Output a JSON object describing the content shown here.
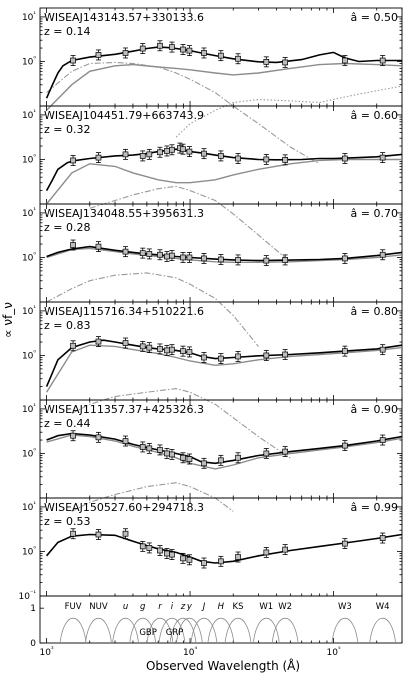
{
  "chart_data": {
    "type": "line",
    "xlabel": "Observed Wavelength (Å)",
    "ylabel": "∝ νf_ν",
    "x_scale": "log",
    "xlim": [
      900,
      300000
    ],
    "x_ticks": [
      {
        "value": 1000,
        "label": "10³"
      },
      {
        "value": 10000,
        "label": "10⁴"
      },
      {
        "value": 100000,
        "label": "10⁵"
      }
    ],
    "y_scale": "log",
    "y_ticks": [
      {
        "value": 0.1,
        "label": "10⁻¹"
      },
      {
        "value": 1,
        "label": "10⁰"
      },
      {
        "value": 10,
        "label": "10¹"
      }
    ],
    "panels": [
      {
        "name": "WISEAJ143143.57+330133.6",
        "redshift_label": "z = 0.14",
        "param_label": "â = 0.50",
        "photometry": {
          "x": [
            1530,
            2300,
            3550,
            4680,
            6170,
            7480,
            8930,
            9900,
            12500,
            16400,
            21600,
            34000,
            46000,
            120000,
            220000
          ],
          "y": [
            1.05,
            1.4,
            1.55,
            1.95,
            2.25,
            2.1,
            1.85,
            1.75,
            1.55,
            1.35,
            1.15,
            0.98,
            0.95,
            1.05,
            1.05
          ]
        },
        "model_total": {
          "x": [
            1000,
            1100,
            1200,
            1300,
            1500,
            2000,
            3000,
            4000,
            5000,
            6000,
            7000,
            8000,
            9000,
            10000,
            12000,
            15000,
            20000,
            30000,
            40000,
            60000,
            80000,
            100000,
            120000,
            150000,
            200000,
            250000,
            300000
          ],
          "y": [
            0.15,
            0.3,
            0.55,
            0.8,
            1.05,
            1.25,
            1.45,
            1.7,
            1.95,
            2.1,
            2.05,
            1.95,
            1.85,
            1.75,
            1.55,
            1.35,
            1.15,
            0.98,
            0.95,
            1.1,
            1.4,
            1.6,
            1.2,
            1.0,
            1.05,
            1.05,
            1.05
          ]
        },
        "component_grey": {
          "x": [
            1000,
            1500,
            2000,
            3000,
            4000,
            6000,
            8000,
            10000,
            15000,
            20000,
            30000,
            50000,
            80000,
            120000,
            200000,
            300000
          ],
          "y": [
            0.08,
            0.3,
            0.6,
            0.8,
            0.85,
            0.75,
            0.7,
            0.65,
            0.55,
            0.5,
            0.55,
            0.7,
            0.85,
            0.9,
            0.85,
            0.8
          ]
        },
        "component_dashdot": {
          "x": [
            1000,
            1500,
            2000,
            3000,
            4000,
            6000,
            8000,
            10000,
            15000,
            20000,
            30000,
            50000,
            80000
          ],
          "y": [
            0.2,
            0.6,
            0.9,
            0.95,
            0.9,
            0.75,
            0.55,
            0.4,
            0.2,
            0.1,
            0.04,
            0.012,
            0.005
          ]
        },
        "component_dotted": {
          "x": [
            8000,
            10000,
            15000,
            20000,
            30000,
            50000,
            80000,
            120000,
            200000,
            300000
          ],
          "y": [
            0.02,
            0.04,
            0.08,
            0.12,
            0.14,
            0.13,
            0.12,
            0.16,
            0.22,
            0.28
          ]
        }
      },
      {
        "name": "WISEAJ104451.79+663743.9",
        "redshift_label": "z = 0.32",
        "param_label": "â = 0.60",
        "photometry": {
          "x": [
            1530,
            2300,
            3550,
            4680,
            5200,
            6170,
            6900,
            7480,
            8500,
            8930,
            9900,
            12500,
            16400,
            21600,
            34000,
            46000,
            120000,
            220000
          ],
          "y": [
            0.95,
            1.1,
            1.3,
            1.2,
            1.3,
            1.45,
            1.55,
            1.65,
            1.8,
            1.7,
            1.5,
            1.35,
            1.2,
            1.05,
            1.0,
            0.98,
            1.05,
            1.1
          ]
        },
        "model_total": {
          "x": [
            1000,
            1100,
            1200,
            1400,
            1600,
            2000,
            3000,
            4000,
            5000,
            6000,
            7000,
            8000,
            9000,
            10000,
            12000,
            15000,
            20000,
            30000,
            40000,
            60000,
            80000,
            100000,
            150000,
            200000,
            300000
          ],
          "y": [
            0.2,
            0.35,
            0.6,
            0.85,
            0.95,
            1.05,
            1.2,
            1.25,
            1.35,
            1.5,
            1.6,
            1.7,
            1.65,
            1.5,
            1.4,
            1.25,
            1.1,
            1.0,
            0.98,
            1.0,
            1.05,
            1.05,
            1.1,
            1.15,
            1.3
          ]
        },
        "component_grey": {
          "x": [
            1000,
            1500,
            2000,
            3000,
            4000,
            6000,
            8000,
            10000,
            15000,
            20000,
            30000,
            50000,
            80000,
            120000,
            200000,
            300000
          ],
          "y": [
            0.1,
            0.5,
            0.8,
            0.7,
            0.5,
            0.35,
            0.3,
            0.3,
            0.35,
            0.45,
            0.6,
            0.8,
            0.95,
            1.0,
            1.0,
            1.0
          ]
        },
        "component_dashdot": {
          "x": [
            2000,
            3000,
            4000,
            6000,
            8000,
            10000,
            15000,
            20000,
            30000,
            50000
          ],
          "y": [
            0.08,
            0.12,
            0.16,
            0.22,
            0.25,
            0.2,
            0.12,
            0.06,
            0.02,
            0.005
          ]
        }
      },
      {
        "name": "WISEAJ134048.55+395631.3",
        "redshift_label": "z = 0.28",
        "param_label": "â = 0.70",
        "photometry": {
          "x": [
            1530,
            2300,
            3550,
            4680,
            5200,
            6170,
            6900,
            7480,
            8930,
            9900,
            12500,
            16400,
            21600,
            34000,
            46000,
            120000,
            220000
          ],
          "y": [
            1.9,
            1.75,
            1.35,
            1.25,
            1.2,
            1.15,
            1.05,
            1.1,
            1.0,
            1.0,
            0.95,
            0.9,
            0.88,
            0.85,
            0.88,
            0.95,
            1.15
          ]
        },
        "model_total": {
          "x": [
            1000,
            1200,
            1500,
            2000,
            3000,
            4000,
            5000,
            6000,
            8000,
            10000,
            15000,
            20000,
            30000,
            50000,
            80000,
            120000,
            200000,
            300000
          ],
          "y": [
            1.05,
            1.3,
            1.55,
            1.75,
            1.45,
            1.3,
            1.2,
            1.15,
            1.05,
            1.0,
            0.92,
            0.88,
            0.85,
            0.87,
            0.9,
            0.95,
            1.1,
            1.3
          ]
        },
        "component_grey": {
          "x": [
            1000,
            1500,
            2000,
            3000,
            4000,
            6000,
            8000,
            10000,
            15000,
            20000,
            30000,
            50000,
            80000,
            120000,
            200000,
            300000
          ],
          "y": [
            1.0,
            1.5,
            1.6,
            1.35,
            1.2,
            1.05,
            0.95,
            0.88,
            0.8,
            0.78,
            0.78,
            0.8,
            0.85,
            0.9,
            1.0,
            1.15
          ]
        },
        "component_dashdot": {
          "x": [
            1000,
            1500,
            2000,
            3000,
            5000,
            8000,
            10000,
            15000,
            20000,
            30000
          ],
          "y": [
            0.1,
            0.2,
            0.3,
            0.4,
            0.45,
            0.35,
            0.25,
            0.12,
            0.05,
            0.01
          ]
        }
      },
      {
        "name": "WISEAJ115716.34+510221.6",
        "redshift_label": "z = 0.83",
        "param_label": "â = 0.80",
        "photometry": {
          "x": [
            1530,
            2300,
            3550,
            4680,
            5200,
            6170,
            6900,
            7480,
            8930,
            9900,
            12500,
            16400,
            21600,
            34000,
            46000,
            120000,
            220000
          ],
          "y": [
            1.65,
            2.05,
            1.9,
            1.6,
            1.5,
            1.4,
            1.3,
            1.35,
            1.25,
            1.2,
            0.9,
            0.85,
            0.95,
            1.0,
            1.05,
            1.25,
            1.35
          ]
        },
        "model_total": {
          "x": [
            1000,
            1200,
            1500,
            2000,
            2500,
            3000,
            4000,
            5000,
            6000,
            8000,
            10000,
            12000,
            15000,
            20000,
            30000,
            50000,
            80000,
            120000,
            200000,
            300000
          ],
          "y": [
            0.2,
            0.8,
            1.5,
            2.0,
            2.2,
            2.0,
            1.7,
            1.5,
            1.4,
            1.3,
            1.15,
            0.95,
            0.85,
            0.9,
            0.98,
            1.05,
            1.15,
            1.25,
            1.4,
            1.7
          ]
        },
        "component_grey": {
          "x": [
            1000,
            1500,
            2000,
            3000,
            4000,
            6000,
            8000,
            10000,
            15000,
            20000,
            30000,
            50000,
            80000,
            120000,
            200000,
            300000
          ],
          "y": [
            0.15,
            1.2,
            1.7,
            1.6,
            1.35,
            1.1,
            0.9,
            0.75,
            0.6,
            0.65,
            0.8,
            0.95,
            1.05,
            1.15,
            1.3,
            1.5
          ]
        },
        "component_dashdot": {
          "x": [
            1500,
            2000,
            3000,
            5000,
            8000,
            10000,
            15000,
            20000,
            30000,
            50000
          ],
          "y": [
            0.05,
            0.08,
            0.12,
            0.15,
            0.18,
            0.15,
            0.08,
            0.04,
            0.015,
            0.005
          ]
        }
      },
      {
        "name": "WISEAJ111357.37+425326.3",
        "redshift_label": "z = 0.44",
        "param_label": "â = 0.90",
        "photometry": {
          "x": [
            1530,
            2300,
            3550,
            4680,
            5200,
            6170,
            6900,
            7480,
            8930,
            9900,
            12500,
            16400,
            21600,
            34000,
            46000,
            120000,
            220000
          ],
          "y": [
            2.5,
            2.3,
            1.9,
            1.4,
            1.3,
            1.2,
            1.0,
            0.95,
            0.8,
            0.75,
            0.6,
            0.7,
            0.8,
            1.0,
            1.1,
            1.5,
            2.0
          ]
        },
        "model_total": {
          "x": [
            1000,
            1200,
            1500,
            2000,
            3000,
            4000,
            5000,
            6000,
            8000,
            10000,
            12000,
            15000,
            20000,
            30000,
            50000,
            80000,
            120000,
            200000,
            300000
          ],
          "y": [
            2.0,
            2.5,
            2.8,
            2.6,
            2.1,
            1.6,
            1.35,
            1.2,
            1.0,
            0.85,
            0.65,
            0.6,
            0.7,
            0.9,
            1.1,
            1.3,
            1.5,
            1.9,
            2.4
          ]
        },
        "component_grey": {
          "x": [
            1000,
            1500,
            2000,
            3000,
            4000,
            6000,
            8000,
            10000,
            15000,
            20000,
            30000,
            50000,
            80000,
            120000,
            200000,
            300000
          ],
          "y": [
            1.8,
            2.6,
            2.4,
            1.9,
            1.45,
            1.05,
            0.8,
            0.6,
            0.45,
            0.55,
            0.8,
            1.0,
            1.2,
            1.4,
            1.75,
            2.2
          ]
        },
        "component_dashdot": {
          "x": [
            1500,
            2000,
            3000,
            5000,
            8000,
            10000,
            15000,
            20000
          ],
          "y": [
            0.05,
            0.08,
            0.12,
            0.18,
            0.22,
            0.18,
            0.1,
            0.05
          ]
        }
      },
      {
        "name": "WISEAJ150527.60+294718.3",
        "redshift_label": "z = 0.53",
        "param_label": "â = 0.99",
        "photometry": {
          "x": [
            1530,
            2300,
            3550,
            4680,
            5200,
            6170,
            6900,
            7480,
            8930,
            9900,
            12500,
            16400,
            21600,
            34000,
            46000,
            120000,
            220000
          ],
          "y": [
            2.5,
            2.4,
            2.5,
            1.3,
            1.2,
            1.05,
            0.9,
            0.85,
            0.7,
            0.65,
            0.55,
            0.6,
            0.75,
            0.95,
            1.1,
            1.5,
            2.0
          ]
        },
        "model_total": {
          "x": [
            1000,
            1200,
            1500,
            2000,
            3000,
            4000,
            5000,
            6000,
            8000,
            10000,
            12000,
            15000,
            20000,
            30000,
            50000,
            80000,
            120000,
            200000,
            300000
          ],
          "y": [
            0.8,
            1.6,
            2.2,
            2.4,
            2.3,
            1.7,
            1.35,
            1.15,
            0.95,
            0.75,
            0.6,
            0.55,
            0.6,
            0.8,
            1.05,
            1.3,
            1.55,
            1.95,
            2.4
          ]
        }
      }
    ],
    "filters": {
      "labels": [
        "FUV",
        "NUV",
        "u",
        "g",
        "r",
        "i",
        "z",
        "y",
        "J",
        "H",
        "K_S",
        "W1",
        "W2",
        "W3",
        "W4"
      ],
      "label_x": [
        1530,
        2300,
        3550,
        4680,
        6170,
        7480,
        8930,
        9900,
        12500,
        16400,
        21600,
        34000,
        46000,
        120000,
        220000
      ],
      "gaia_labels": [
        "G_BP",
        "G_RP"
      ],
      "gaia_x": [
        5100,
        7800
      ],
      "y_ticks": [
        "0",
        "1"
      ]
    }
  }
}
